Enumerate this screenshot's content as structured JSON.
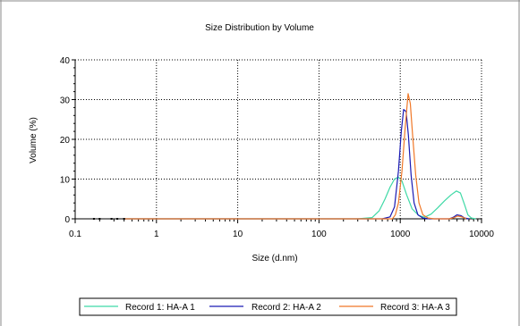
{
  "chart_data": {
    "type": "line",
    "title": "Size Distribution by Volume",
    "xlabel": "Size (d.nm)",
    "ylabel": "Volume (%)",
    "xscale": "log",
    "xlim": [
      0.1,
      10000
    ],
    "ylim": [
      0,
      40
    ],
    "x_ticks": [
      0.1,
      1,
      10,
      100,
      1000,
      10000
    ],
    "x_tick_labels": [
      "0.1",
      "1",
      "10",
      "100",
      "1000",
      "10000"
    ],
    "y_ticks": [
      0,
      10,
      20,
      30,
      40
    ],
    "y_tick_labels": [
      "0",
      "10",
      "20",
      "30",
      "40"
    ],
    "grid": true,
    "legend_position": "bottom",
    "series": [
      {
        "name": "Record 1: HA-A 1",
        "color": "#3fd9a6",
        "points": [
          [
            0.4,
            0
          ],
          [
            300,
            0
          ],
          [
            450,
            0.3
          ],
          [
            550,
            2
          ],
          [
            650,
            5
          ],
          [
            750,
            8
          ],
          [
            850,
            10
          ],
          [
            950,
            10.5
          ],
          [
            1050,
            9.5
          ],
          [
            1200,
            6
          ],
          [
            1400,
            2.5
          ],
          [
            1700,
            0.8
          ],
          [
            2000,
            0.4
          ],
          [
            2400,
            1.2
          ],
          [
            2900,
            2.8
          ],
          [
            3500,
            4.5
          ],
          [
            4200,
            6
          ],
          [
            4900,
            7
          ],
          [
            5500,
            6.5
          ],
          [
            6200,
            3.5
          ],
          [
            6800,
            1
          ],
          [
            7500,
            0.2
          ],
          [
            8500,
            0
          ]
        ]
      },
      {
        "name": "Record 2: HA-A 2",
        "color": "#1a1ab4",
        "points": [
          [
            0.4,
            0
          ],
          [
            600,
            0
          ],
          [
            750,
            0.5
          ],
          [
            850,
            3
          ],
          [
            950,
            12
          ],
          [
            1030,
            22
          ],
          [
            1100,
            27.5
          ],
          [
            1180,
            27
          ],
          [
            1260,
            21
          ],
          [
            1360,
            11
          ],
          [
            1480,
            4
          ],
          [
            1650,
            1
          ],
          [
            1900,
            0.2
          ],
          [
            2300,
            0
          ],
          [
            4000,
            0
          ],
          [
            4500,
            0.4
          ],
          [
            5000,
            1
          ],
          [
            5600,
            0.8
          ],
          [
            6200,
            0.2
          ],
          [
            7000,
            0
          ]
        ]
      },
      {
        "name": "Record 3: HA-A 3",
        "color": "#f07828",
        "points": [
          [
            0.4,
            0
          ],
          [
            800,
            0
          ],
          [
            870,
            1
          ],
          [
            950,
            4
          ],
          [
            1050,
            12
          ],
          [
            1150,
            23
          ],
          [
            1250,
            31.5
          ],
          [
            1330,
            29
          ],
          [
            1420,
            21
          ],
          [
            1550,
            11
          ],
          [
            1700,
            4
          ],
          [
            1900,
            1
          ],
          [
            2200,
            0.2
          ],
          [
            2600,
            0
          ],
          [
            4000,
            0
          ],
          [
            4600,
            0.3
          ],
          [
            5100,
            0.7
          ],
          [
            5700,
            0.5
          ],
          [
            6500,
            0
          ]
        ]
      }
    ]
  }
}
